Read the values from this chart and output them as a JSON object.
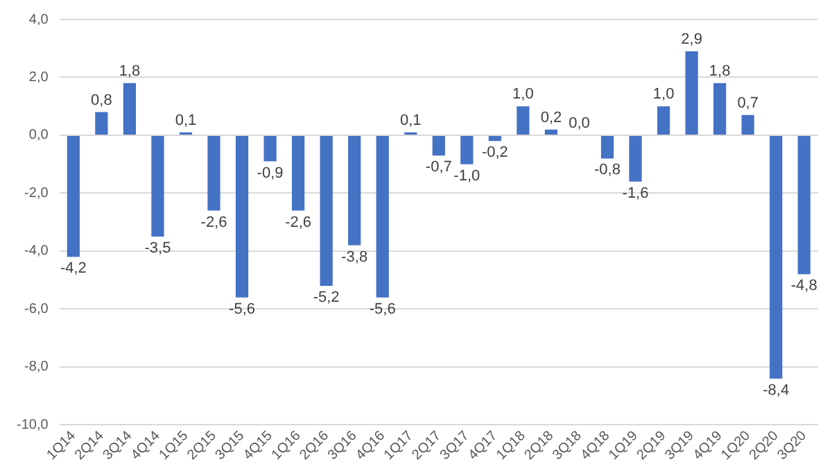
{
  "chart_data": {
    "type": "bar",
    "categories": [
      "1Q14",
      "2Q14",
      "3Q14",
      "4Q14",
      "1Q15",
      "2Q15",
      "3Q15",
      "4Q15",
      "1Q16",
      "2Q16",
      "3Q16",
      "4Q16",
      "1Q17",
      "2Q17",
      "3Q17",
      "4Q17",
      "1Q18",
      "2Q18",
      "3Q18",
      "4Q18",
      "1Q19",
      "2Q19",
      "3Q19",
      "4Q19",
      "1Q20",
      "2Q20",
      "3Q20"
    ],
    "values": [
      -4.2,
      0.8,
      1.8,
      -3.5,
      0.1,
      -2.6,
      -5.6,
      -0.9,
      -2.6,
      -5.2,
      -3.8,
      -5.6,
      0.1,
      -0.7,
      -1.0,
      -0.2,
      1.0,
      0.2,
      0.0,
      -0.8,
      -1.6,
      1.0,
      2.9,
      1.8,
      0.7,
      -8.4,
      -4.8
    ],
    "color": "#4472c4",
    "ylim": [
      -10,
      4
    ],
    "yticks": [
      {
        "value": -10,
        "label": "-10,0"
      },
      {
        "value": -8,
        "label": "-8,0"
      },
      {
        "value": -6,
        "label": "-6,0"
      },
      {
        "value": -4,
        "label": "-4,0"
      },
      {
        "value": -2,
        "label": "-2,0"
      },
      {
        "value": 0,
        "label": "0,0"
      },
      {
        "value": 2,
        "label": "2,0"
      },
      {
        "value": 4,
        "label": "4,0"
      }
    ],
    "grid": "y",
    "value_labels": [
      "-4,2",
      "0,8",
      "1,8",
      "-3,5",
      "0,1",
      "-2,6",
      "-5,6",
      "-0,9",
      "-2,6",
      "-5,2",
      "-3,8",
      "-5,6",
      "0,1",
      "-0,7",
      "-1,0",
      "-0,2",
      "1,0",
      "0,2",
      "0,0",
      "-0,8",
      "-1,6",
      "1,0",
      "2,9",
      "1,8",
      "0,7",
      "-8,4",
      "-4,8"
    ]
  }
}
